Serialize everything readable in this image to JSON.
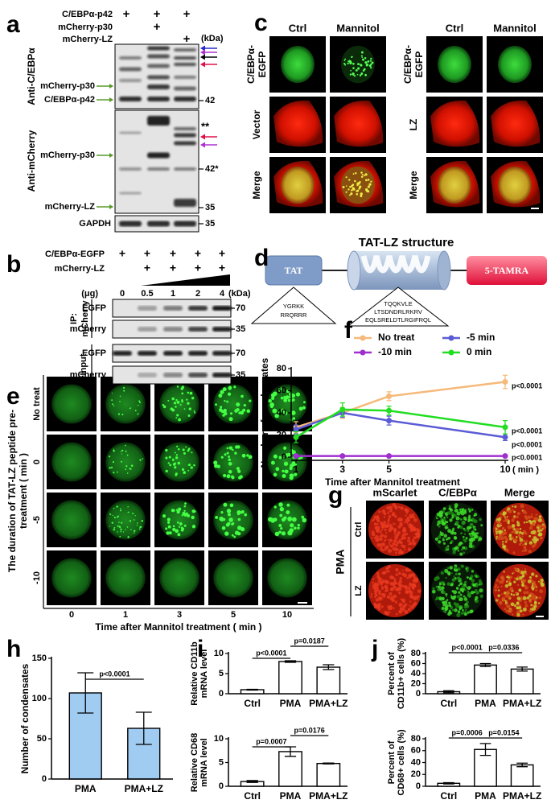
{
  "panel_letters": [
    "a",
    "b",
    "c",
    "d",
    "e",
    "f",
    "g",
    "h",
    "i",
    "j"
  ],
  "panel_a": {
    "conditions": [
      {
        "label": "C/EBPα-p42",
        "marks": [
          "+",
          "+",
          "+"
        ]
      },
      {
        "label": "mCherry-p30",
        "marks": [
          null,
          "+",
          null
        ]
      },
      {
        "label": "mCherry-LZ",
        "marks": [
          null,
          null,
          "+"
        ]
      }
    ],
    "kda": "(kDa)",
    "antibodies": [
      "Anti-C/EBPα",
      "Anti-mCherry"
    ],
    "band_labels": [
      "mCherry-p30",
      "C/EBPα-p42",
      "mCherry-p30",
      "mCherry-LZ",
      "GAPDH"
    ],
    "markers": [
      "42",
      "42*",
      "35",
      "35"
    ],
    "asterisks": "**"
  },
  "panel_b": {
    "conditions": [
      {
        "label": "C/EBPα-EGFP",
        "marks": [
          "+",
          "+",
          "+",
          "+",
          "+"
        ]
      },
      {
        "label": "mCherry-LZ",
        "marks": [
          null,
          "+",
          "+",
          "+",
          "+"
        ]
      }
    ],
    "dose_unit": "(μg)",
    "doses": [
      0,
      0.5,
      1,
      2,
      4
    ],
    "kda": "(kDa)",
    "ip_label": [
      "IP:",
      "mCherry"
    ],
    "input_label": "Input",
    "blots": [
      "EGFP",
      "mCherry",
      "EGFP",
      "mCherry"
    ],
    "markers": [
      70,
      35,
      70,
      35
    ]
  },
  "panel_c": {
    "left": {
      "columns": [
        "Ctrl",
        "Mannitol"
      ],
      "rows": [
        [
          "C/EBPα-",
          "EGFP"
        ],
        [
          "Vector"
        ],
        [
          "Merge"
        ]
      ]
    },
    "right": {
      "columns": [
        "Ctrl",
        "Mannitol"
      ],
      "rows": [
        [
          "C/EBPα-",
          "EGFP"
        ],
        [
          "LZ"
        ],
        [
          "Merge"
        ]
      ]
    }
  },
  "panel_d": {
    "title": "TAT-LZ  structure",
    "boxes": [
      "TAT",
      "5-TAMRA"
    ],
    "sequences": [
      [
        "YGRKK",
        "RRQRRR"
      ],
      [
        "TQQKVLE",
        "LTSDNDRLRKRV",
        "EQLSRELDTLRGIFRQL"
      ]
    ]
  },
  "panel_e": {
    "rows": [
      "No treat",
      "0",
      "-5",
      "-10"
    ],
    "columns": [
      0,
      1,
      3,
      5,
      10
    ],
    "y_title": [
      "The duration of TAT-LZ peptide pre-",
      "treatment ( min )"
    ],
    "x_title": "Time after Mannitol treatment ( min )"
  },
  "panel_g": {
    "columns": [
      "mScarlet",
      "C/EBPα",
      "Merge"
    ],
    "rows": [
      "Ctrl",
      "LZ"
    ],
    "group": "PMA"
  },
  "chart_data": [
    {
      "type": "line",
      "x": [
        1,
        3,
        5,
        10
      ],
      "xlim": [
        1,
        10
      ],
      "xticks": [
        1,
        3,
        5,
        10
      ],
      "x_unit": "( min )",
      "ylim": [
        0,
        80
      ],
      "yticks": [
        0,
        20,
        40,
        60,
        80
      ],
      "x_label": "Time after Mannitol treatment",
      "y_label": "Number of condensates",
      "series": [
        {
          "name": "No treat",
          "color": "#f5b97a",
          "values": [
            27,
            40,
            55,
            68
          ],
          "errors": [
            5,
            5,
            4,
            6
          ]
        },
        {
          "name": "-5 min",
          "color": "#5b5bd6",
          "values": [
            25,
            40,
            33,
            18
          ],
          "errors": [
            4,
            4,
            4,
            3
          ]
        },
        {
          "name": "-10 min",
          "color": "#a02fd0",
          "values": [
            1,
            1,
            1,
            1
          ],
          "errors": [
            0.5,
            0.5,
            0.5,
            0.5
          ]
        },
        {
          "name": "0 min",
          "color": "#22dd22",
          "values": [
            18,
            43,
            42,
            27
          ],
          "errors": [
            5,
            6,
            4,
            6
          ]
        }
      ],
      "annotations": [
        "p<0.0001",
        "p<0.0001",
        "p<0.0001",
        "p<0.0001"
      ]
    },
    {
      "type": "bar",
      "categories": [
        "PMA",
        "PMA+LZ"
      ],
      "values": [
        107,
        63
      ],
      "errors": [
        25,
        20
      ],
      "ylim": [
        0,
        150
      ],
      "yticks": [
        0,
        50,
        100,
        150
      ],
      "y_label": "Number of condensates",
      "color": "#2f8fe0",
      "annotations": [
        "p<0.0001"
      ]
    },
    {
      "type": "bar",
      "categories": [
        "Ctrl",
        "PMA",
        "PMA+LZ"
      ],
      "values": [
        1,
        8,
        6.6
      ],
      "errors": [
        0.1,
        0.2,
        0.6
      ],
      "ylim": [
        0,
        10
      ],
      "yticks": [
        0,
        5,
        10
      ],
      "y_label": [
        "Relative CD11b",
        "mRNA level"
      ],
      "color": "#ffffff",
      "annotations": [
        "p<0.0001",
        "p=0.0187"
      ]
    },
    {
      "type": "bar",
      "categories": [
        "Ctrl",
        "PMA",
        "PMA+LZ"
      ],
      "values": [
        1,
        7.3,
        4.8
      ],
      "errors": [
        0.2,
        1,
        0.1
      ],
      "ylim": [
        0,
        10
      ],
      "yticks": [
        0,
        5,
        10
      ],
      "y_label": [
        "Relative CD68",
        "mRNA level"
      ],
      "color": "#ffffff",
      "annotations": [
        "p=0.0007",
        "p=0.0176"
      ]
    },
    {
      "type": "bar",
      "categories": [
        "Ctrl",
        "PMA",
        "PMA+LZ"
      ],
      "values": [
        4,
        57,
        49
      ],
      "errors": [
        2,
        3,
        4
      ],
      "ylim": [
        0,
        80
      ],
      "yticks": [
        0,
        20,
        40,
        60,
        80
      ],
      "y_label": [
        "Percent of",
        "CD11b+ cells (%)"
      ],
      "color": "#ffffff",
      "annotations": [
        "p<0.0001",
        "p=0.0336"
      ]
    },
    {
      "type": "bar",
      "categories": [
        "Ctrl",
        "PMA",
        "PMA+LZ"
      ],
      "values": [
        5,
        62,
        36
      ],
      "errors": [
        1,
        10,
        3
      ],
      "ylim": [
        0,
        80
      ],
      "yticks": [
        0,
        20,
        40,
        60,
        80
      ],
      "y_label": [
        "Percent of",
        "CD68+ cells (%)"
      ],
      "color": "#ffffff",
      "annotations": [
        "p=0.0006",
        "p=0.0154"
      ]
    }
  ]
}
